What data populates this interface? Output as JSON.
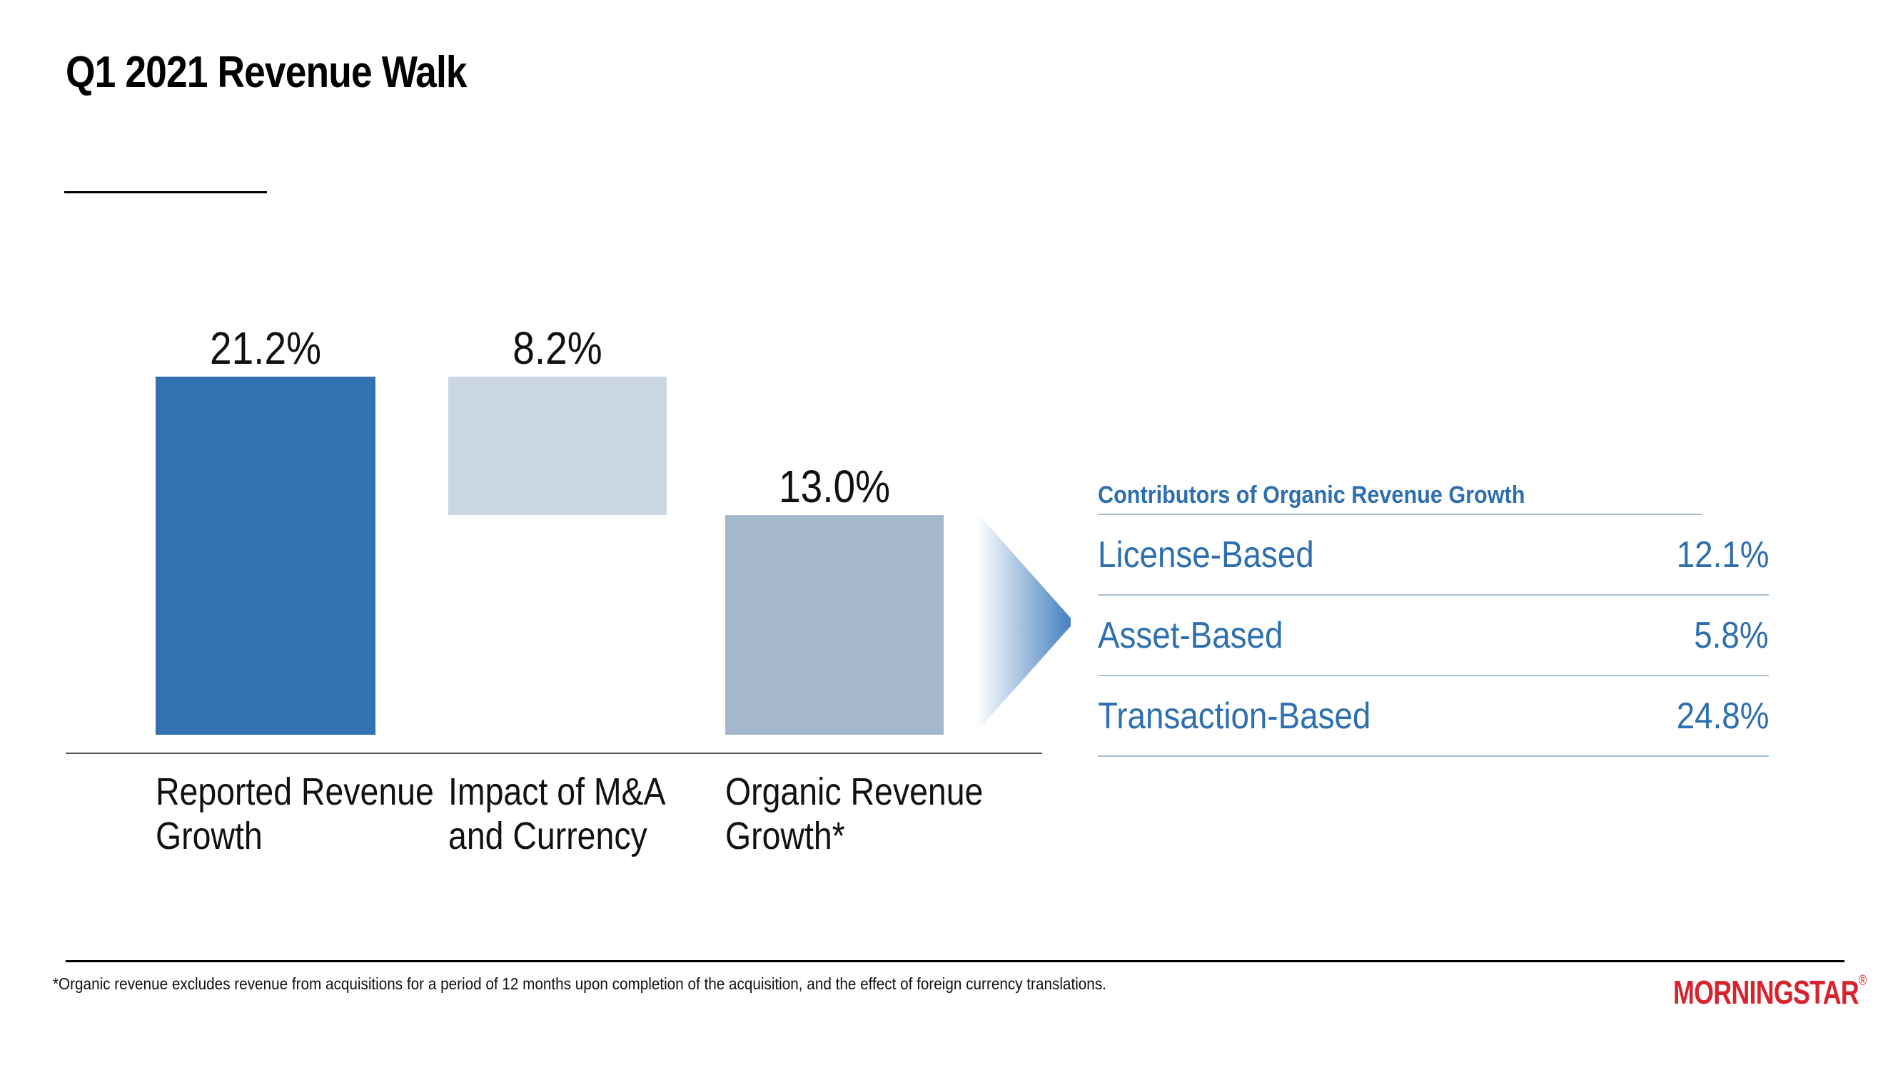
{
  "page": {
    "title": "Q1 2021 Revenue Walk",
    "footnote": "*Organic revenue excludes revenue from acquisitions for a period of 12 months upon completion of the acquisition, and the effect of foreign currency translations.",
    "logo_text": "MORNINGSTAR",
    "logo_mark": "®"
  },
  "chart_data": {
    "type": "bar",
    "subtype": "waterfall",
    "categories": [
      "Reported Revenue Growth",
      "Impact of M&A and Currency",
      "Organic Revenue Growth*"
    ],
    "category_lines": [
      [
        "Reported Revenue",
        "Growth"
      ],
      [
        "Impact of M&A",
        "and Currency"
      ],
      [
        "Organic Revenue",
        "Growth*"
      ]
    ],
    "values": [
      21.2,
      -8.2,
      13.0
    ],
    "value_labels": [
      "21.2%",
      "8.2%",
      "13.0%"
    ],
    "bar_kinds": [
      "total",
      "decrease",
      "total"
    ],
    "colors": [
      "#3471b1",
      "#cbd7e3",
      "#a4b7cc"
    ],
    "ylim": [
      0,
      21.2
    ],
    "grid": false,
    "title": "",
    "xlabel": "",
    "ylabel": ""
  },
  "contributors": {
    "header": "Contributors of Organic Revenue Growth",
    "rows": [
      {
        "label": "License-Based",
        "value": "12.1%"
      },
      {
        "label": "Asset-Based",
        "value": "5.8%"
      },
      {
        "label": "Transaction-Based",
        "value": "24.8%"
      }
    ]
  },
  "colors": {
    "accent_blue": "#2e6fb0",
    "logo_red": "#d7232e"
  }
}
